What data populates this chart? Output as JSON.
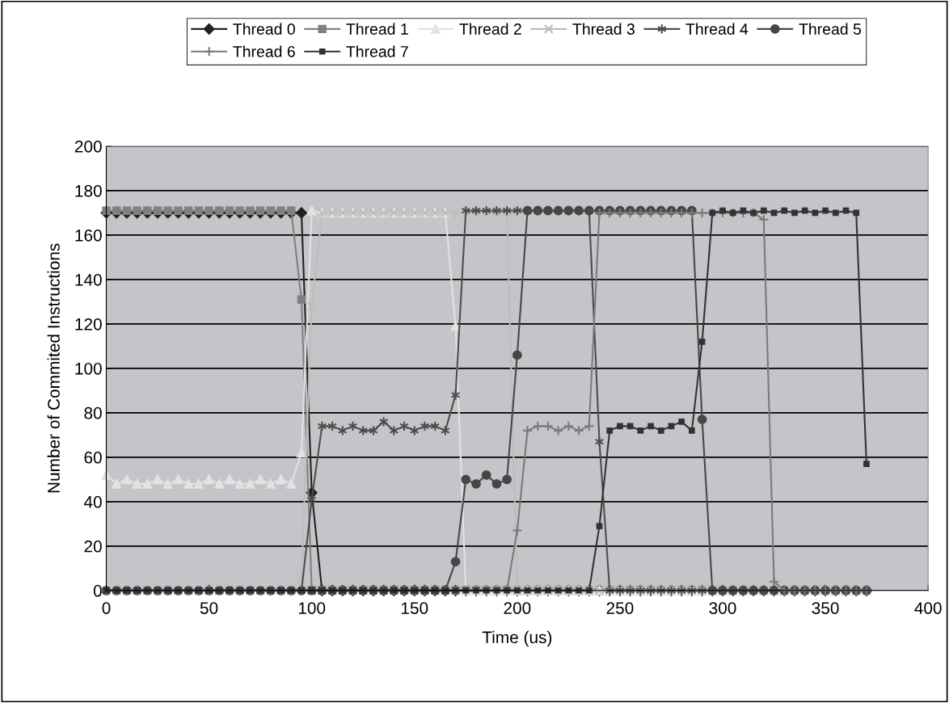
{
  "chart_data": {
    "type": "line",
    "xlabel": "Time (us)",
    "ylabel": "Number of Commited Instructions",
    "x": [
      0,
      5,
      10,
      15,
      20,
      25,
      30,
      35,
      40,
      45,
      50,
      55,
      60,
      65,
      70,
      75,
      80,
      85,
      90,
      95,
      100,
      105,
      110,
      115,
      120,
      125,
      130,
      135,
      140,
      145,
      150,
      155,
      160,
      165,
      170,
      175,
      180,
      185,
      190,
      195,
      200,
      205,
      210,
      215,
      220,
      225,
      230,
      235,
      240,
      245,
      250,
      255,
      260,
      265,
      270,
      275,
      280,
      285,
      290,
      295,
      300,
      305,
      310,
      315,
      320,
      325,
      330,
      335,
      340,
      345,
      350,
      355,
      360,
      365,
      370
    ],
    "xlim": [
      0,
      400
    ],
    "xticks": [
      0,
      50,
      100,
      150,
      200,
      250,
      300,
      350,
      400
    ],
    "ylim": [
      0,
      200
    ],
    "yticks": [
      0,
      20,
      40,
      60,
      80,
      100,
      120,
      140,
      160,
      180,
      200
    ],
    "grid": "y",
    "legend": "top",
    "series": [
      {
        "name": "Thread 0",
        "color": "#222222",
        "marker": "diamond",
        "values": [
          170,
          170,
          170,
          170,
          170,
          170,
          170,
          170,
          170,
          170,
          170,
          170,
          170,
          170,
          170,
          170,
          170,
          170,
          170,
          170,
          44,
          0,
          0,
          0,
          0,
          0,
          0,
          0,
          0,
          0,
          0,
          0,
          0,
          0,
          0,
          0,
          0,
          0,
          0,
          0,
          0,
          0,
          0,
          0,
          0,
          0,
          0,
          0,
          0,
          0,
          0,
          0,
          0,
          0,
          0,
          0,
          0,
          0,
          0,
          0,
          0,
          0,
          0,
          0,
          0,
          0,
          0,
          0,
          0,
          0,
          0,
          0,
          0,
          0,
          0
        ]
      },
      {
        "name": "Thread 1",
        "color": "#808080",
        "marker": "square",
        "values": [
          171,
          171,
          171,
          171,
          171,
          171,
          171,
          171,
          171,
          171,
          171,
          171,
          171,
          171,
          171,
          171,
          171,
          171,
          171,
          131,
          0,
          0,
          0,
          0,
          0,
          0,
          0,
          0,
          0,
          0,
          0,
          0,
          0,
          0,
          0,
          0,
          0,
          0,
          0,
          0,
          0,
          0,
          0,
          0,
          0,
          0,
          0,
          0,
          0,
          0,
          0,
          0,
          0,
          0,
          0,
          0,
          0,
          0,
          0,
          0,
          0,
          0,
          0,
          0,
          0,
          0,
          0,
          0,
          0,
          0,
          0,
          0,
          0,
          0,
          0
        ]
      },
      {
        "name": "Thread 2",
        "color": "#e2e2e2",
        "marker": "triangle",
        "values": [
          52,
          48,
          50,
          48,
          48,
          50,
          48,
          50,
          48,
          48,
          50,
          48,
          50,
          48,
          48,
          50,
          48,
          50,
          48,
          62,
          171,
          170,
          170,
          170,
          170,
          170,
          170,
          170,
          170,
          170,
          170,
          170,
          170,
          170,
          119,
          0,
          0,
          0,
          0,
          0,
          0,
          0,
          0,
          0,
          0,
          0,
          0,
          0,
          0,
          0,
          0,
          0,
          0,
          0,
          0,
          0,
          0,
          0,
          0,
          0,
          0,
          0,
          0,
          0,
          0,
          0,
          0,
          0,
          0,
          0,
          0,
          0,
          0,
          0,
          0
        ]
      },
      {
        "name": "Thread 3",
        "color": "#bdbdbd",
        "marker": "cross",
        "values": [
          0,
          0,
          0,
          0,
          0,
          0,
          0,
          0,
          0,
          0,
          0,
          0,
          0,
          0,
          0,
          0,
          0,
          0,
          0,
          6,
          128,
          170,
          170,
          170,
          170,
          170,
          170,
          170,
          170,
          170,
          170,
          170,
          170,
          170,
          170,
          170,
          170,
          170,
          170,
          170,
          0,
          0,
          0,
          0,
          0,
          0,
          0,
          0,
          0,
          0,
          0,
          0,
          0,
          0,
          0,
          0,
          0,
          0,
          0,
          0,
          0,
          0,
          0,
          0,
          0,
          0,
          0,
          0,
          0,
          0,
          0,
          0,
          0,
          0,
          0
        ]
      },
      {
        "name": "Thread 4",
        "color": "#4d4d4d",
        "marker": "cross",
        "values": [
          0,
          0,
          0,
          0,
          0,
          0,
          0,
          0,
          0,
          0,
          0,
          0,
          0,
          0,
          0,
          0,
          0,
          0,
          0,
          0,
          41,
          74,
          74,
          72,
          74,
          72,
          72,
          76,
          72,
          74,
          72,
          74,
          74,
          72,
          88,
          171,
          171,
          171,
          171,
          171,
          171,
          171,
          171,
          171,
          171,
          171,
          171,
          171,
          67,
          0,
          0,
          0,
          0,
          0,
          0,
          0,
          0,
          0,
          0,
          0,
          0,
          0,
          0,
          0,
          0,
          0,
          0,
          0,
          0,
          0,
          0,
          0,
          0,
          0,
          0
        ]
      },
      {
        "name": "Thread 5",
        "color": "#474747",
        "marker": "circle",
        "values": [
          0,
          0,
          0,
          0,
          0,
          0,
          0,
          0,
          0,
          0,
          0,
          0,
          0,
          0,
          0,
          0,
          0,
          0,
          0,
          0,
          0,
          0,
          0,
          0,
          0,
          0,
          0,
          0,
          0,
          0,
          0,
          0,
          0,
          0,
          13,
          50,
          48,
          52,
          48,
          50,
          106,
          171,
          171,
          171,
          171,
          171,
          171,
          171,
          171,
          171,
          171,
          171,
          171,
          171,
          171,
          171,
          171,
          171,
          77,
          0,
          0,
          0,
          0,
          0,
          0,
          0,
          0,
          0,
          0,
          0,
          0,
          0,
          0,
          0,
          0
        ]
      },
      {
        "name": "Thread 6",
        "color": "#7a7a7a",
        "marker": "plus",
        "values": [
          0,
          0,
          0,
          0,
          0,
          0,
          0,
          0,
          0,
          0,
          0,
          0,
          0,
          0,
          0,
          0,
          0,
          0,
          0,
          0,
          0,
          0,
          0,
          0,
          0,
          0,
          0,
          0,
          0,
          0,
          0,
          0,
          0,
          0,
          0,
          0,
          0,
          0,
          0,
          0,
          27,
          72,
          74,
          74,
          72,
          74,
          72,
          74,
          170,
          170,
          170,
          170,
          170,
          170,
          170,
          170,
          170,
          170,
          170,
          170,
          170,
          170,
          170,
          170,
          167,
          4,
          0,
          0,
          0,
          0,
          0,
          0,
          0,
          0,
          0
        ]
      },
      {
        "name": "Thread 7",
        "color": "#333333",
        "marker": "square",
        "values": [
          0,
          0,
          0,
          0,
          0,
          0,
          0,
          0,
          0,
          0,
          0,
          0,
          0,
          0,
          0,
          0,
          0,
          0,
          0,
          0,
          0,
          0,
          0,
          0,
          0,
          0,
          0,
          0,
          0,
          0,
          0,
          0,
          0,
          0,
          0,
          0,
          0,
          0,
          0,
          0,
          0,
          0,
          0,
          0,
          0,
          0,
          0,
          0,
          29,
          72,
          74,
          74,
          72,
          74,
          72,
          74,
          76,
          72,
          112,
          170,
          171,
          170,
          171,
          170,
          171,
          170,
          171,
          170,
          171,
          170,
          171,
          170,
          171,
          170,
          57
        ]
      }
    ]
  }
}
